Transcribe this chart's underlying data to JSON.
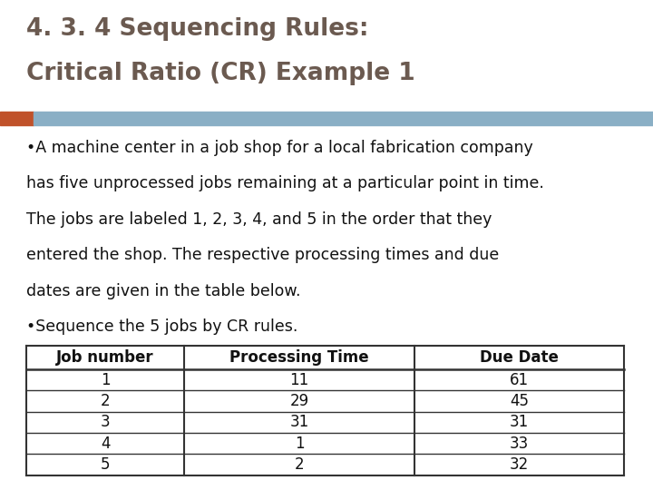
{
  "title_line1": "4. 3. 4 Sequencing Rules:",
  "title_line2": "Critical Ratio (CR) Example 1",
  "title_color": "#6b5a50",
  "accent_bar_color_orange": "#C0522A",
  "accent_bar_color_blue": "#8AAFC5",
  "body_text_line1": "•A machine center in a job shop for a local fabrication company",
  "body_text_line2": "has five unprocessed jobs remaining at a particular point in time.",
  "body_text_line3": "The jobs are labeled 1, 2, 3, 4, and 5 in the order that they",
  "body_text_line4": "entered the shop. The respective processing times and due",
  "body_text_line5": "dates are given in the table below.",
  "body_text_line6": "•Sequence the 5 jobs by CR rules.",
  "body_text_color": "#111111",
  "body_fontsize": 12.5,
  "table_headers": [
    "Job number",
    "Processing Time",
    "Due Date"
  ],
  "table_data": [
    [
      "1",
      "11",
      "61"
    ],
    [
      "2",
      "29",
      "45"
    ],
    [
      "3",
      "31",
      "31"
    ],
    [
      "4",
      "1",
      "33"
    ],
    [
      "5",
      "2",
      "32"
    ]
  ],
  "table_header_fontsize": 12,
  "table_data_fontsize": 12,
  "background_color": "#ffffff",
  "title_fontsize": 19
}
